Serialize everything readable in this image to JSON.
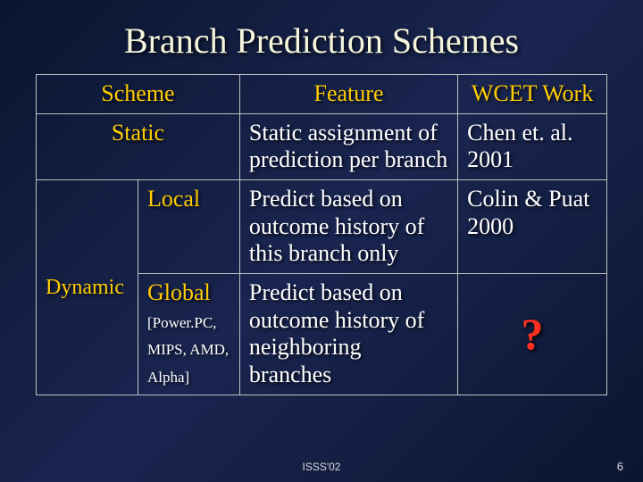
{
  "title": "Branch Prediction Schemes",
  "headers": {
    "scheme": "Scheme",
    "feature": "Feature",
    "wcet": "WCET Work"
  },
  "rows": {
    "static": {
      "name": "Static",
      "feature": "Static assignment of prediction per branch",
      "wcet": "Chen et. al. 2001"
    },
    "dynamic_label": "Dynamic",
    "local": {
      "name": "Local",
      "feature": "Predict based on outcome history of this branch only",
      "wcet": "Colin & Puat 2000"
    },
    "global": {
      "name": "Global",
      "archs": "[Power.PC, MIPS, AMD, Alpha]",
      "feature": "Predict based on outcome history of neighboring branches",
      "wcet": "?"
    }
  },
  "footer": {
    "conference": "ISSS'02",
    "page": "6"
  }
}
